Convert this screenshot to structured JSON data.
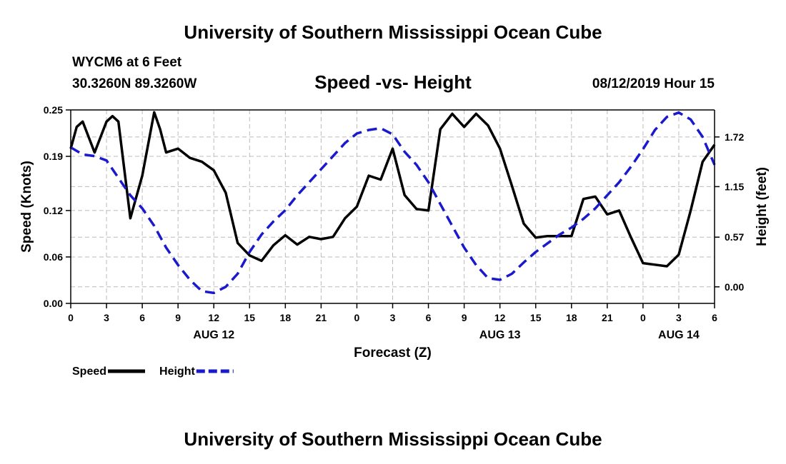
{
  "header": {
    "title": "University of Southern Mississippi Ocean Cube",
    "station": "WYCM6 at 6 Feet",
    "coords": "30.3260N 89.3260W",
    "subtitle": "Speed -vs- Height",
    "datetime": "08/12/2019 Hour 15"
  },
  "footer": {
    "title": "University of Southern Mississippi Ocean Cube"
  },
  "chart_data": {
    "type": "line",
    "title": "Speed -vs- Height",
    "xlabel": "Forecast (Z)",
    "ylabel": "Speed (Knots)",
    "y2label": "Height (feet)",
    "grid": true,
    "xlim": [
      0,
      54
    ],
    "ylim": [
      0,
      0.25
    ],
    "y2lim": [
      -0.19,
      2.03
    ],
    "x_ticks": [
      0,
      3,
      6,
      9,
      12,
      15,
      18,
      21,
      24,
      27,
      30,
      33,
      36,
      39,
      42,
      45,
      48,
      51,
      54
    ],
    "x_tick_labels": [
      "0",
      "3",
      "6",
      "9",
      "12",
      "15",
      "18",
      "21",
      "0",
      "3",
      "6",
      "9",
      "12",
      "15",
      "18",
      "21",
      "0",
      "3",
      "6"
    ],
    "date_labels": [
      {
        "x": 12,
        "label": "AUG 12"
      },
      {
        "x": 36,
        "label": "AUG 13"
      },
      {
        "x": 51,
        "label": "AUG 14"
      }
    ],
    "y_ticks": [
      0.0,
      0.06,
      0.12,
      0.19,
      0.25
    ],
    "y_tick_labels": [
      "0.00",
      "0.06",
      "0.12",
      "0.19",
      "0.25"
    ],
    "y2_ticks": [
      0.0,
      0.57,
      1.15,
      1.72
    ],
    "y2_tick_labels": [
      "0.00",
      "0.57",
      "1.15",
      "1.72"
    ],
    "legend": [
      {
        "name": "Speed",
        "color": "#000000",
        "style": "solid"
      },
      {
        "name": "Height",
        "color": "#1a1acc",
        "style": "dashed"
      }
    ],
    "series": [
      {
        "name": "Speed",
        "axis": "left",
        "color": "#000000",
        "style": "solid",
        "x": [
          0,
          0.5,
          1,
          2,
          3,
          3.5,
          4,
          5,
          6,
          7,
          7.5,
          8,
          9,
          10,
          11,
          12,
          13,
          14,
          15,
          16,
          17,
          18,
          19,
          20,
          21,
          22,
          23,
          24,
          25,
          26,
          27,
          28,
          29,
          30,
          31,
          32,
          33,
          34,
          35,
          36,
          37,
          38,
          39,
          40,
          41,
          42,
          43,
          44,
          45,
          46,
          47,
          48,
          49,
          50,
          51,
          52,
          53,
          54
        ],
        "values": [
          0.2,
          0.228,
          0.235,
          0.195,
          0.235,
          0.242,
          0.235,
          0.11,
          0.165,
          0.247,
          0.225,
          0.195,
          0.2,
          0.188,
          0.183,
          0.172,
          0.143,
          0.078,
          0.062,
          0.055,
          0.075,
          0.088,
          0.076,
          0.086,
          0.083,
          0.086,
          0.11,
          0.125,
          0.165,
          0.16,
          0.2,
          0.14,
          0.122,
          0.12,
          0.225,
          0.245,
          0.228,
          0.245,
          0.23,
          0.2,
          0.152,
          0.103,
          0.085,
          0.087,
          0.087,
          0.087,
          0.135,
          0.138,
          0.115,
          0.12,
          0.085,
          0.052,
          0.05,
          0.048,
          0.063,
          0.12,
          0.183,
          0.205
        ]
      },
      {
        "name": "Height",
        "axis": "right",
        "color": "#1a1acc",
        "style": "dashed",
        "x": [
          0,
          1,
          2,
          3,
          4,
          5,
          6,
          7,
          8,
          9,
          10,
          11,
          12,
          13,
          14,
          15,
          16,
          17,
          18,
          19,
          20,
          21,
          22,
          23,
          24,
          25,
          26,
          27,
          28,
          29,
          30,
          31,
          32,
          33,
          34,
          35,
          36,
          37,
          38,
          39,
          40,
          41,
          42,
          43,
          44,
          45,
          46,
          47,
          48,
          49,
          50,
          51,
          52,
          53,
          54
        ],
        "values": [
          1.6,
          1.52,
          1.5,
          1.45,
          1.25,
          1.05,
          0.9,
          0.7,
          0.45,
          0.25,
          0.08,
          -0.05,
          -0.07,
          0.0,
          0.15,
          0.4,
          0.6,
          0.75,
          0.88,
          1.05,
          1.2,
          1.35,
          1.5,
          1.65,
          1.76,
          1.8,
          1.82,
          1.75,
          1.55,
          1.4,
          1.2,
          0.95,
          0.7,
          0.45,
          0.25,
          0.1,
          0.08,
          0.15,
          0.28,
          0.4,
          0.5,
          0.6,
          0.68,
          0.78,
          0.9,
          1.05,
          1.2,
          1.38,
          1.58,
          1.8,
          1.95,
          2.0,
          1.92,
          1.72,
          1.4
        ]
      }
    ]
  }
}
